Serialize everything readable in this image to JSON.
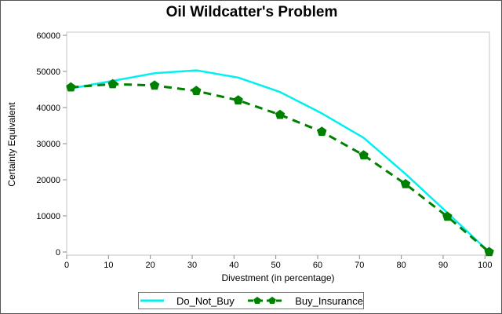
{
  "title": "Oil Wildcatter's Problem",
  "colors": {
    "do_not_buy": "#00f0f0",
    "buy_insurance": "#008000",
    "frame": "#c6c6c6",
    "tick": "#8a8a8a",
    "text": "#000000"
  },
  "chart_data": {
    "type": "line",
    "title": "Oil Wildcatter's Problem",
    "xlabel": "Divestment (in percentage)",
    "ylabel": "Certainty Equivalent",
    "x": [
      1,
      11,
      21,
      31,
      41,
      51,
      61,
      71,
      81,
      91,
      101
    ],
    "series": [
      {
        "name": "Do_Not_Buy",
        "style": "solid",
        "marker": "none",
        "color": "#00f0f0",
        "values": [
          45300,
          47400,
          49500,
          50300,
          48300,
          44300,
          38400,
          31600,
          21600,
          10900,
          0
        ]
      },
      {
        "name": "Buy_Insurance",
        "style": "dashed",
        "marker": "pentagon",
        "color": "#008000",
        "values": [
          45600,
          46500,
          46100,
          44600,
          42000,
          38000,
          33300,
          26800,
          18800,
          9800,
          0
        ]
      }
    ],
    "xticks": [
      0,
      10,
      20,
      30,
      40,
      50,
      60,
      70,
      80,
      90,
      100
    ],
    "yticks": [
      0,
      10000,
      20000,
      30000,
      40000,
      50000,
      60000
    ],
    "xlim": [
      0,
      101
    ],
    "ylim": [
      0,
      60000
    ],
    "grid": false,
    "legend_position": "bottom"
  },
  "legend": {
    "items": [
      {
        "label": "Do_Not_Buy"
      },
      {
        "label": "Buy_Insurance"
      }
    ]
  }
}
